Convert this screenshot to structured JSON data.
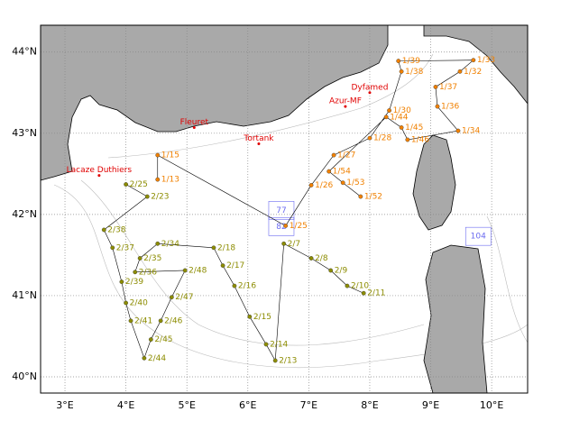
{
  "map": {
    "xlim": [
      2.6,
      10.59
    ],
    "ylim": [
      39.8,
      44.33
    ],
    "xticks": [
      {
        "value": 3,
        "label": "3°E"
      },
      {
        "value": 4,
        "label": "4°E"
      },
      {
        "value": 5,
        "label": "5°E"
      },
      {
        "value": 6,
        "label": "6°E"
      },
      {
        "value": 7,
        "label": "7°E"
      },
      {
        "value": 8,
        "label": "8°E"
      },
      {
        "value": 9,
        "label": "9°E"
      },
      {
        "value": 10,
        "label": "10°E"
      }
    ],
    "yticks": [
      {
        "value": 40,
        "label": "40°N"
      },
      {
        "value": 41,
        "label": "41°N"
      },
      {
        "value": 42,
        "label": "42°N"
      },
      {
        "value": 43,
        "label": "43°N"
      },
      {
        "value": 44,
        "label": "44°N"
      }
    ],
    "grid": true,
    "places": {
      "color": "#e00000",
      "items": [
        {
          "name": "Fleuret",
          "lon": 5.12,
          "lat": 43.07
        },
        {
          "name": "Tortank",
          "lon": 6.18,
          "lat": 42.87
        },
        {
          "name": "Dyfamed",
          "lon": 8.0,
          "lat": 43.5
        },
        {
          "name": "Azur-MF",
          "lon": 7.6,
          "lat": 43.33
        },
        {
          "name": "Lacaze Duthiers",
          "lon": 3.56,
          "lat": 42.48
        }
      ]
    },
    "boxes": {
      "color": "#6a6af0",
      "items": [
        {
          "label": "104",
          "lon": 9.78,
          "lat": 41.73
        },
        {
          "label": "82",
          "lon": 6.55,
          "lat": 41.85
        },
        {
          "label": "77",
          "lon": 6.55,
          "lat": 42.05
        }
      ]
    },
    "transects": [
      {
        "color": "#f08000",
        "stations": [
          {
            "label": "1/13",
            "lon": 4.52,
            "lat": 42.43
          },
          {
            "label": "1/15",
            "lon": 4.52,
            "lat": 42.73
          },
          {
            "label": "1/25",
            "lon": 6.62,
            "lat": 41.86
          },
          {
            "label": "1/26",
            "lon": 7.04,
            "lat": 42.36
          },
          {
            "label": "1/27",
            "lon": 7.41,
            "lat": 42.73
          },
          {
            "label": "1/28",
            "lon": 8.0,
            "lat": 42.94
          },
          {
            "label": "1/30",
            "lon": 8.32,
            "lat": 43.28
          },
          {
            "label": "1/38",
            "lon": 8.52,
            "lat": 43.76
          },
          {
            "label": "1/39",
            "lon": 8.47,
            "lat": 43.89
          },
          {
            "label": "1/33",
            "lon": 9.7,
            "lat": 43.9
          },
          {
            "label": "1/32",
            "lon": 9.48,
            "lat": 43.76
          },
          {
            "label": "1/37",
            "lon": 9.08,
            "lat": 43.57
          },
          {
            "label": "1/36",
            "lon": 9.11,
            "lat": 43.33
          },
          {
            "label": "1/34",
            "lon": 9.45,
            "lat": 43.03
          },
          {
            "label": "1/46",
            "lon": 8.62,
            "lat": 42.92
          },
          {
            "label": "1/45",
            "lon": 8.52,
            "lat": 43.07
          },
          {
            "label": "1/44",
            "lon": 8.27,
            "lat": 43.2
          },
          {
            "label": "1/54",
            "lon": 7.33,
            "lat": 42.53
          },
          {
            "label": "1/53",
            "lon": 7.56,
            "lat": 42.39
          },
          {
            "label": "1/52",
            "lon": 7.85,
            "lat": 42.22
          }
        ]
      },
      {
        "color": "#8c8c00",
        "stations": [
          {
            "label": "2/25",
            "lon": 4.0,
            "lat": 42.37
          },
          {
            "label": "2/23",
            "lon": 4.35,
            "lat": 42.22
          },
          {
            "label": "2/38",
            "lon": 3.64,
            "lat": 41.81
          },
          {
            "label": "2/37",
            "lon": 3.78,
            "lat": 41.59
          },
          {
            "label": "2/39",
            "lon": 3.93,
            "lat": 41.17
          },
          {
            "label": "2/40",
            "lon": 4.0,
            "lat": 40.91
          },
          {
            "label": "2/41",
            "lon": 4.08,
            "lat": 40.69
          },
          {
            "label": "2/44",
            "lon": 4.3,
            "lat": 40.23
          },
          {
            "label": "2/45",
            "lon": 4.41,
            "lat": 40.46
          },
          {
            "label": "2/46",
            "lon": 4.57,
            "lat": 40.69
          },
          {
            "label": "2/47",
            "lon": 4.75,
            "lat": 40.98
          },
          {
            "label": "2/48",
            "lon": 4.97,
            "lat": 41.31
          },
          {
            "label": "2/36",
            "lon": 4.15,
            "lat": 41.29
          },
          {
            "label": "2/35",
            "lon": 4.23,
            "lat": 41.46
          },
          {
            "label": "2/34",
            "lon": 4.52,
            "lat": 41.64
          },
          {
            "label": "2/18",
            "lon": 5.44,
            "lat": 41.59
          },
          {
            "label": "2/17",
            "lon": 5.59,
            "lat": 41.37
          },
          {
            "label": "2/16",
            "lon": 5.78,
            "lat": 41.12
          },
          {
            "label": "2/15",
            "lon": 6.03,
            "lat": 40.74
          },
          {
            "label": "2/14",
            "lon": 6.3,
            "lat": 40.4
          },
          {
            "label": "2/13",
            "lon": 6.45,
            "lat": 40.2
          },
          {
            "label": "2/7",
            "lon": 6.59,
            "lat": 41.64
          },
          {
            "label": "2/8",
            "lon": 7.04,
            "lat": 41.46
          },
          {
            "label": "2/9",
            "lon": 7.36,
            "lat": 41.31
          },
          {
            "label": "2/10",
            "lon": 7.63,
            "lat": 41.12
          },
          {
            "label": "2/11",
            "lon": 7.9,
            "lat": 41.03
          }
        ]
      }
    ]
  }
}
